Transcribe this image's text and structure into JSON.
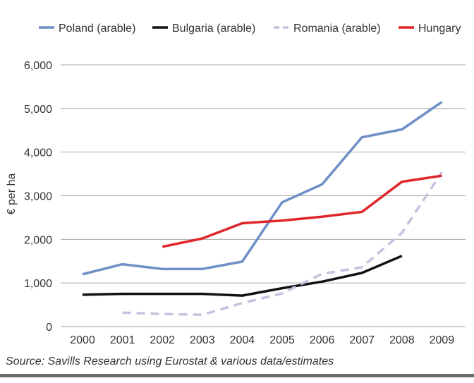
{
  "chart_data": {
    "type": "line",
    "title": "",
    "xlabel": "",
    "ylabel": "€ per ha",
    "x": [
      "2000",
      "2001",
      "2002",
      "2003",
      "2004",
      "2005",
      "2006",
      "2007",
      "2008",
      "2009"
    ],
    "ylim": [
      0,
      6000
    ],
    "yticks": [
      "0",
      "1,000",
      "2,000",
      "3,000",
      "4,000",
      "5,000",
      "6,000"
    ],
    "grid": true,
    "legend_position": "top",
    "series": [
      {
        "name": "Poland (arable)",
        "color": "#6f8fc6",
        "dash": "solid",
        "values": [
          1200,
          1430,
          1320,
          1320,
          1490,
          2850,
          3260,
          4340,
          4520,
          5150
        ]
      },
      {
        "name": "Bulgaria (arable)",
        "color": "#111111",
        "dash": "solid",
        "values": [
          730,
          750,
          750,
          750,
          710,
          880,
          1030,
          1230,
          1620,
          null
        ]
      },
      {
        "name": "Romania (arable)",
        "color": "#c6c2de",
        "dash": "dashed",
        "values": [
          null,
          320,
          290,
          270,
          540,
          760,
          1210,
          1360,
          2150,
          3540
        ]
      },
      {
        "name": "Hungary",
        "color": "#e0262b",
        "dash": "solid",
        "values": [
          null,
          null,
          1830,
          2020,
          2370,
          2430,
          2520,
          2630,
          3320,
          3460
        ]
      }
    ]
  },
  "source": "Source: Savills Research using Eurostat & various data/estimates"
}
